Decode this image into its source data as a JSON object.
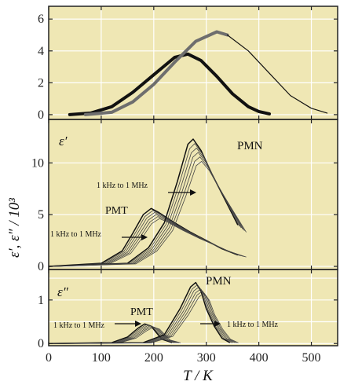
{
  "colors": {
    "background": "#efe7b4",
    "frame": "#222222",
    "grid": "#ffffff",
    "curve_dark": "#111111",
    "curve_gray": "#6e6e6e",
    "curve_mid": "#444444"
  },
  "chart_data": [
    {
      "type": "line",
      "panel": "top",
      "xlim": [
        0,
        550
      ],
      "ylim": [
        -0.3,
        6.8
      ],
      "grid": true,
      "xtick_labels_shown": false,
      "yticks": [
        "0",
        "2",
        "4",
        "6"
      ],
      "series": [
        {
          "style": "thick-dark",
          "x": [
            40,
            80,
            120,
            160,
            200,
            240,
            265,
            290,
            320,
            350,
            380,
            400,
            420
          ],
          "y": [
            0.0,
            0.1,
            0.5,
            1.4,
            2.5,
            3.6,
            3.8,
            3.4,
            2.4,
            1.3,
            0.5,
            0.2,
            0.05
          ]
        },
        {
          "style": "thick-gray",
          "x": [
            70,
            120,
            160,
            200,
            240,
            280,
            320,
            340
          ],
          "y": [
            0.0,
            0.15,
            0.8,
            1.9,
            3.3,
            4.6,
            5.2,
            5.0
          ]
        },
        {
          "style": "thin-dark",
          "x": [
            340,
            380,
            420,
            460,
            500,
            530
          ],
          "y": [
            5.0,
            4.0,
            2.6,
            1.2,
            0.4,
            0.1
          ]
        }
      ]
    },
    {
      "type": "line",
      "panel": "middle",
      "xlim": [
        0,
        550
      ],
      "ylim": [
        -0.3,
        14.2
      ],
      "grid": true,
      "xtick_labels_shown": false,
      "yticks": [
        "0",
        "5",
        "10"
      ],
      "annotations": {
        "panel_label": "ε′",
        "pmn_label": "PMN",
        "pmt_label": "PMT",
        "pmn_freq": "1 kHz to 1 MHz",
        "pmt_freq": "1 kHz to 1 MHz"
      },
      "series": [
        {
          "name": "PMT",
          "x": [
            0,
            100,
            140,
            160,
            180,
            195,
            210,
            240,
            270,
            300,
            330,
            360
          ],
          "y": [
            0,
            0.3,
            1.5,
            3.2,
            5.0,
            5.6,
            5.2,
            4.2,
            3.3,
            2.5,
            1.7,
            1.1
          ]
        },
        {
          "name": "PMN",
          "x": [
            0,
            150,
            190,
            220,
            245,
            265,
            275,
            290,
            310,
            330,
            350,
            360
          ],
          "y": [
            0,
            0.3,
            1.8,
            4.2,
            8.2,
            11.8,
            12.3,
            11.2,
            9.0,
            7.0,
            5.0,
            4.0
          ]
        }
      ]
    },
    {
      "type": "line",
      "panel": "bottom",
      "xlim": [
        0,
        550
      ],
      "ylim": [
        -0.05,
        1.7
      ],
      "grid": true,
      "xticks": [
        "0",
        "100",
        "200",
        "300",
        "400",
        "500"
      ],
      "yticks": [
        "0",
        "1"
      ],
      "xlabel": "T / K",
      "ylabel": "ε′, ε″ / 10³",
      "annotations": {
        "panel_label": "ε″",
        "pmn_label": "PMN",
        "pmt_label": "PMT",
        "pmt_freq": "1 kHz to 1 MHz",
        "pmn_freq": "1 kHz to 1 MHz"
      },
      "series": [
        {
          "name": "PMT",
          "x": [
            0,
            120,
            150,
            170,
            183,
            195,
            205,
            215,
            235
          ],
          "y": [
            0,
            0.02,
            0.15,
            0.35,
            0.45,
            0.4,
            0.25,
            0.1,
            0.02
          ]
        },
        {
          "name": "PMN",
          "x": [
            0,
            180,
            220,
            250,
            270,
            280,
            290,
            300,
            315,
            330,
            345
          ],
          "y": [
            0,
            0.02,
            0.2,
            0.8,
            1.3,
            1.4,
            1.2,
            0.8,
            0.4,
            0.12,
            0.02
          ]
        }
      ]
    }
  ]
}
